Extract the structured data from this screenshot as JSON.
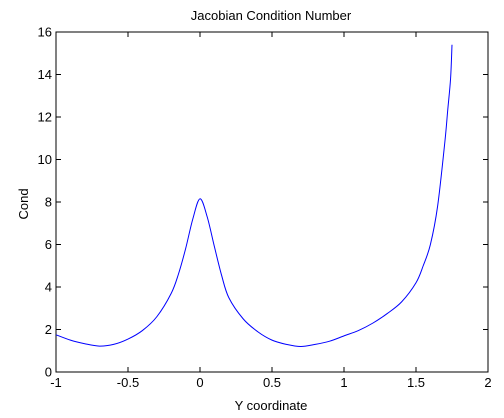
{
  "chart_data": {
    "type": "line",
    "title": "Jacobian Condition Number",
    "xlabel": "Y coordinate",
    "ylabel": "Cond",
    "xlim": [
      -1,
      2
    ],
    "ylim": [
      0,
      16
    ],
    "xticks": [
      "-1",
      "-0.5",
      "0",
      "0.5",
      "1",
      "1.5",
      "2"
    ],
    "yticks": [
      "0",
      "2",
      "4",
      "6",
      "8",
      "10",
      "12",
      "14",
      "16"
    ],
    "grid": false,
    "line_color": "#0000ff",
    "series": [
      {
        "x": [
          -1.0,
          -0.9,
          -0.8,
          -0.7,
          -0.6,
          -0.5,
          -0.4,
          -0.3,
          -0.2,
          -0.15,
          -0.1,
          -0.05,
          0.0,
          0.05,
          0.1,
          0.15,
          0.2,
          0.3,
          0.4,
          0.5,
          0.6,
          0.7,
          0.8,
          0.9,
          1.0,
          1.1,
          1.2,
          1.3,
          1.4,
          1.5,
          1.55,
          1.6,
          1.65,
          1.7,
          1.72,
          1.74,
          1.75
        ],
        "y": [
          1.75,
          1.5,
          1.33,
          1.22,
          1.3,
          1.55,
          1.95,
          2.6,
          3.7,
          4.6,
          5.8,
          7.2,
          8.15,
          7.3,
          5.9,
          4.55,
          3.5,
          2.5,
          1.9,
          1.5,
          1.3,
          1.2,
          1.3,
          1.45,
          1.7,
          1.95,
          2.3,
          2.75,
          3.3,
          4.2,
          5.0,
          6.0,
          7.8,
          10.8,
          12.3,
          13.8,
          15.4
        ]
      }
    ]
  }
}
